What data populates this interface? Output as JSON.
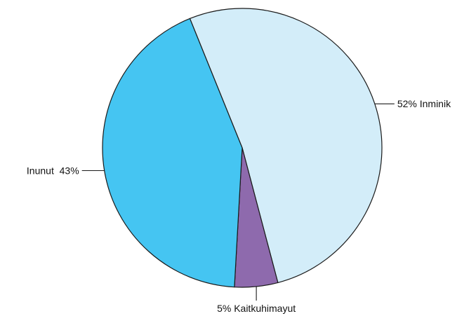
{
  "chart_data": {
    "type": "pie",
    "slices": [
      {
        "label": "52% Inminik",
        "value": 52,
        "color": "#d3edf9"
      },
      {
        "label": "5% Kaitkuhimayut",
        "value": 5,
        "color": "#8e6aad"
      },
      {
        "label": "Inunut  43%",
        "value": 43,
        "color": "#45c5f2"
      }
    ],
    "start_angle_deg": -22,
    "direction": "clockwise",
    "legend": "none",
    "labels": "outside-with-leader-lines"
  }
}
